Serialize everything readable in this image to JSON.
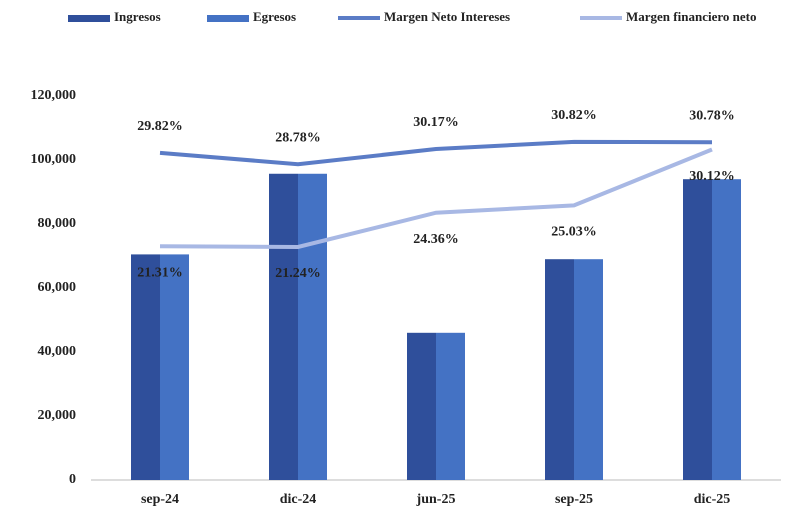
{
  "chart_data": {
    "type": "bar",
    "categories": [
      "sep-24",
      "dic-24",
      "jun-25",
      "sep-25",
      "dic-25"
    ],
    "series": [
      {
        "name": "Ingresos",
        "color": "#2f4f9b",
        "values": [
          70500,
          95700,
          46000,
          69000,
          94000
        ]
      },
      {
        "name": "Egresos",
        "color": "#4472c4",
        "values": [
          70500,
          95700,
          46000,
          69000,
          94000
        ]
      },
      {
        "name": "Margen Neto Intereses",
        "type": "line",
        "axis": "y2",
        "color": "#5b7cc6",
        "values": [
          29.82,
          28.78,
          30.17,
          30.82,
          30.78
        ],
        "value_labels": [
          "29.82%",
          "28.78%",
          "30.17%",
          "30.82%",
          "30.78%"
        ]
      },
      {
        "name": "Margen financiero neto",
        "type": "line",
        "axis": "y2",
        "color": "#a8b8e4",
        "values": [
          21.31,
          21.24,
          24.36,
          25.03,
          30.12
        ],
        "value_labels": [
          "21.31%",
          "21.24%",
          "24.36%",
          "25.03%",
          "30.12%"
        ]
      }
    ],
    "ylim": [
      0,
      120000
    ],
    "yticks": [
      {
        "value": 0,
        "label": "0"
      },
      {
        "value": 20000,
        "label": "20,000"
      },
      {
        "value": 40000,
        "label": "40,000"
      },
      {
        "value": 60000,
        "label": "60,000"
      },
      {
        "value": 80000,
        "label": "80,000"
      },
      {
        "value": 100000,
        "label": "100,000"
      },
      {
        "value": 120000,
        "label": "120,000"
      }
    ],
    "y2lim": [
      0,
      35
    ],
    "legend": "top"
  }
}
